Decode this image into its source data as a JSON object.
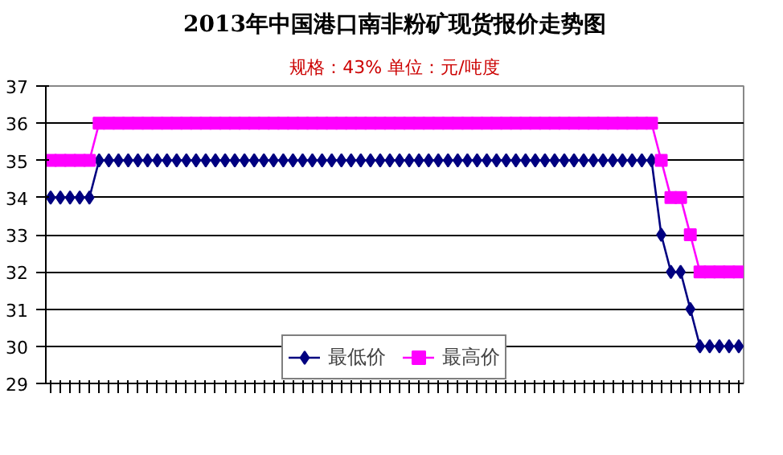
{
  "chart_data": {
    "type": "line",
    "title": "2013年中国港口南非粉矿现货报价走势图",
    "subtitle": "规格：43% 单位：元/吨度",
    "categories": [
      null,
      null,
      null,
      null,
      null,
      null,
      null,
      null,
      null,
      null,
      null,
      null,
      null,
      null,
      null,
      null,
      null,
      null,
      null,
      null,
      null,
      null,
      null,
      null,
      null,
      null,
      null,
      null,
      null,
      null,
      null,
      null,
      null,
      null,
      null,
      null,
      null,
      null,
      null,
      null,
      null,
      null,
      null,
      null,
      null,
      null,
      null,
      null,
      null,
      null,
      null,
      null,
      null,
      null,
      null,
      null,
      null,
      null,
      null,
      null,
      null,
      null,
      null,
      null,
      null,
      null,
      null,
      null,
      null,
      null,
      null,
      null
    ],
    "series": [
      {
        "name": "最低价",
        "color": "#000080",
        "marker": "diamond",
        "values": [
          34,
          34,
          34,
          34,
          34,
          35,
          35,
          35,
          35,
          35,
          35,
          35,
          35,
          35,
          35,
          35,
          35,
          35,
          35,
          35,
          35,
          35,
          35,
          35,
          35,
          35,
          35,
          35,
          35,
          35,
          35,
          35,
          35,
          35,
          35,
          35,
          35,
          35,
          35,
          35,
          35,
          35,
          35,
          35,
          35,
          35,
          35,
          35,
          35,
          35,
          35,
          35,
          35,
          35,
          35,
          35,
          35,
          35,
          35,
          35,
          35,
          35,
          35,
          33,
          32,
          32,
          31,
          30,
          30,
          30,
          30,
          30
        ]
      },
      {
        "name": "最高价",
        "color": "#ff00ff",
        "marker": "square",
        "values": [
          35,
          35,
          35,
          35,
          35,
          36,
          36,
          36,
          36,
          36,
          36,
          36,
          36,
          36,
          36,
          36,
          36,
          36,
          36,
          36,
          36,
          36,
          36,
          36,
          36,
          36,
          36,
          36,
          36,
          36,
          36,
          36,
          36,
          36,
          36,
          36,
          36,
          36,
          36,
          36,
          36,
          36,
          36,
          36,
          36,
          36,
          36,
          36,
          36,
          36,
          36,
          36,
          36,
          36,
          36,
          36,
          36,
          36,
          36,
          36,
          36,
          36,
          36,
          35,
          34,
          34,
          33,
          32,
          32,
          32,
          32,
          32
        ]
      }
    ],
    "ylim": [
      29,
      37
    ],
    "yticks": [
      29,
      30,
      31,
      32,
      33,
      34,
      35,
      36,
      37
    ],
    "grid": "y",
    "legend": "bottom",
    "tick_labels": "y",
    "line_style": "solid"
  }
}
